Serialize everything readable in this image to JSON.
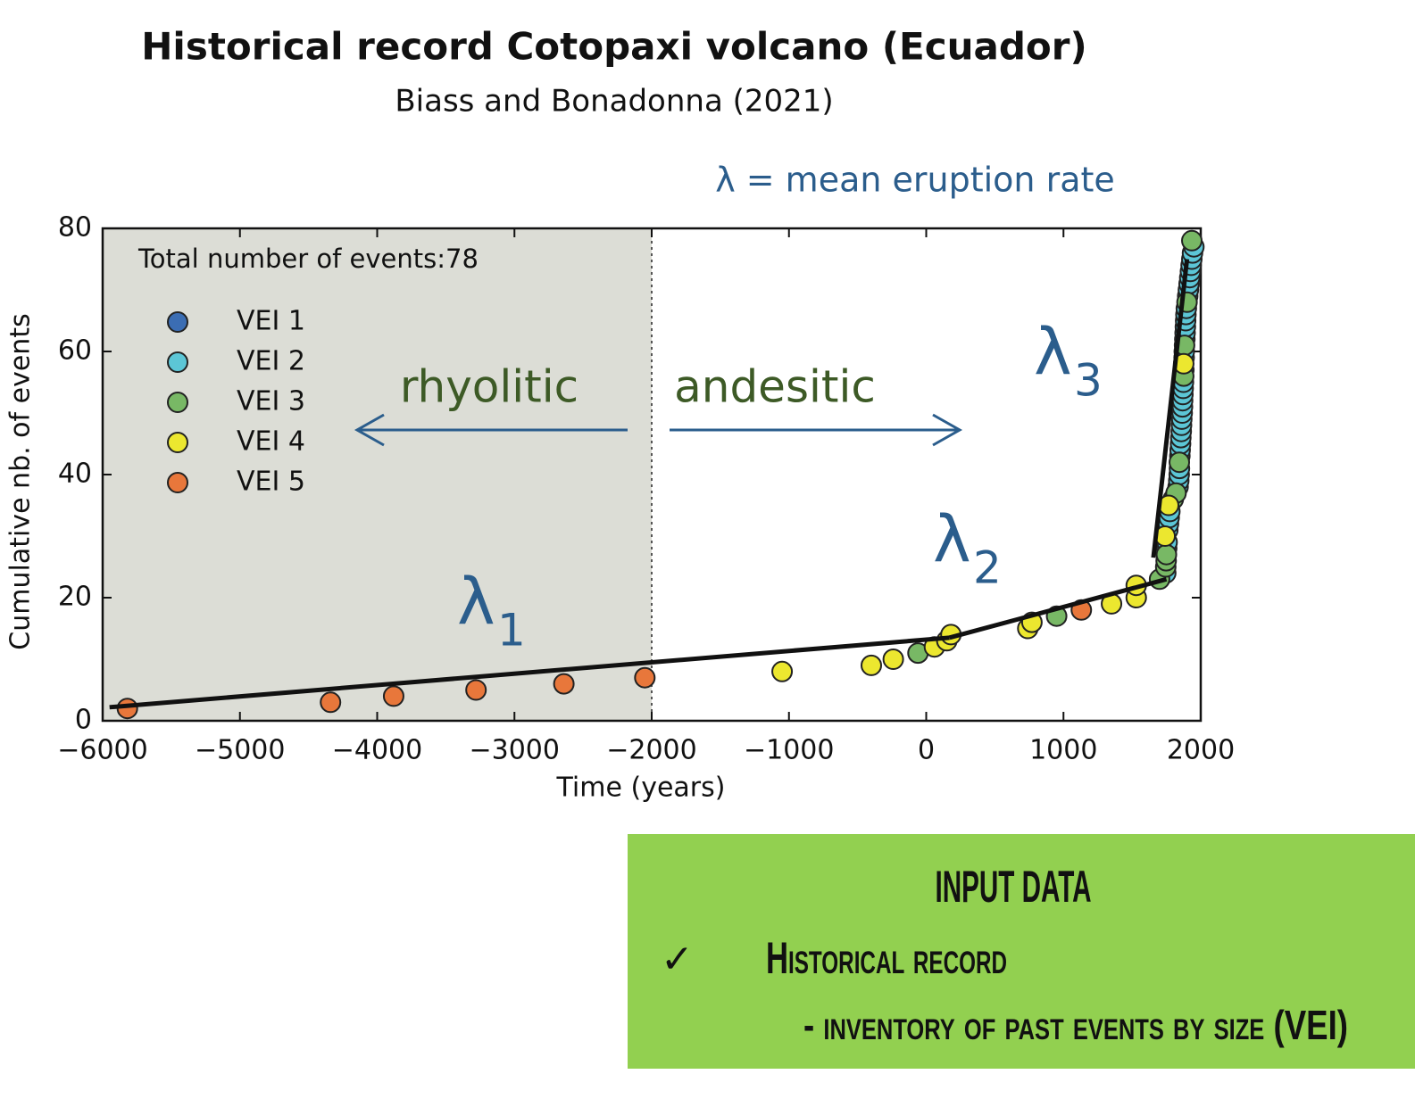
{
  "chart_data": {
    "type": "scatter",
    "title": "Historical record Cotopaxi volcano (Ecuador)",
    "subtitle": "Biass and Bonadonna (2021)",
    "x_label": "Time (years)",
    "y_label": "Cumulative nb. of events",
    "xlim": [
      -6000,
      2000
    ],
    "ylim": [
      0,
      80
    ],
    "xticks": [
      {
        "value": -6000,
        "label": "−6000"
      },
      {
        "value": -5000,
        "label": "−5000"
      },
      {
        "value": -4000,
        "label": "−4000"
      },
      {
        "value": -3000,
        "label": "−3000"
      },
      {
        "value": -2000,
        "label": "−2000"
      },
      {
        "value": -1000,
        "label": "−1000"
      },
      0,
      1000,
      2000
    ],
    "yticks": [
      0,
      20,
      40,
      60,
      80
    ],
    "legend": "upper left",
    "legend_title": "Total number of events:78",
    "shaded_xrange": [
      -6000,
      -2000
    ],
    "shade_color": "#dcddd6",
    "series": [
      {
        "name": "VEI 1",
        "color": "#3b6db3",
        "x": [],
        "values": []
      },
      {
        "name": "VEI 2",
        "color": "#5cc6d6",
        "x": [
          1745,
          1752,
          1755,
          1760,
          1765,
          1770,
          1775,
          1835,
          1840,
          1843,
          1845,
          1848,
          1850,
          1853,
          1855,
          1858,
          1860,
          1862,
          1865,
          1867,
          1868,
          1870,
          1872,
          1874,
          1877,
          1879,
          1880,
          1884,
          1886,
          1888,
          1890,
          1892,
          1895,
          1905,
          1910,
          1915,
          1920,
          1925,
          1930,
          1935,
          1940,
          1950
        ],
        "values": [
          24,
          28,
          29,
          31,
          32,
          33,
          34,
          38,
          39,
          40,
          41,
          43,
          44,
          45,
          46,
          47,
          48,
          49,
          50,
          51,
          52,
          53,
          54,
          55,
          57,
          59,
          60,
          62,
          63,
          64,
          65,
          66,
          67,
          69,
          70,
          71,
          72,
          73,
          74,
          75,
          76,
          77
        ]
      },
      {
        "name": "VEI 3",
        "color": "#78b865",
        "x": [
          -60,
          950,
          1700,
          1745,
          1748,
          1750,
          1800,
          1820,
          1844,
          1876,
          1882,
          1900,
          1935
        ],
        "values": [
          11,
          17,
          23,
          25,
          26,
          27,
          36,
          37,
          42,
          56,
          61,
          68,
          78
        ]
      },
      {
        "name": "VEI 4",
        "color": "#ece72f",
        "x": [
          -1050,
          -400,
          -240,
          60,
          150,
          180,
          740,
          770,
          1350,
          1530,
          1530,
          1740,
          1766,
          1876
        ],
        "values": [
          8,
          9,
          10,
          12,
          13,
          14,
          15,
          16,
          19,
          20,
          22,
          30,
          35,
          58
        ]
      },
      {
        "name": "VEI 5",
        "color": "#e8773b",
        "x": [
          -5820,
          -4340,
          -3880,
          -3280,
          -2640,
          -2050,
          1130
        ],
        "values": [
          2,
          3,
          4,
          5,
          6,
          7,
          18
        ]
      }
    ],
    "trend_lines": [
      {
        "x": [
          -5950,
          170
        ],
        "values": [
          2.2,
          13.5
        ]
      },
      {
        "x": [
          170,
          1750
        ],
        "values": [
          13.5,
          23
        ]
      },
      {
        "x": [
          1655,
          1900
        ],
        "values": [
          26.5,
          75
        ]
      }
    ],
    "rate_labels": [
      {
        "symbol": "λ",
        "sub": "1"
      },
      {
        "symbol": "λ",
        "sub": "2"
      },
      {
        "symbol": "λ",
        "sub": "3"
      }
    ],
    "rate_note": "λ = mean eruption rate",
    "left_label": "rhyolitic",
    "right_label": "andesitic"
  },
  "box": {
    "title": "INPUT DATA",
    "item": "Historical record",
    "subitem": "- inventory of past events  by size (VEI)"
  }
}
